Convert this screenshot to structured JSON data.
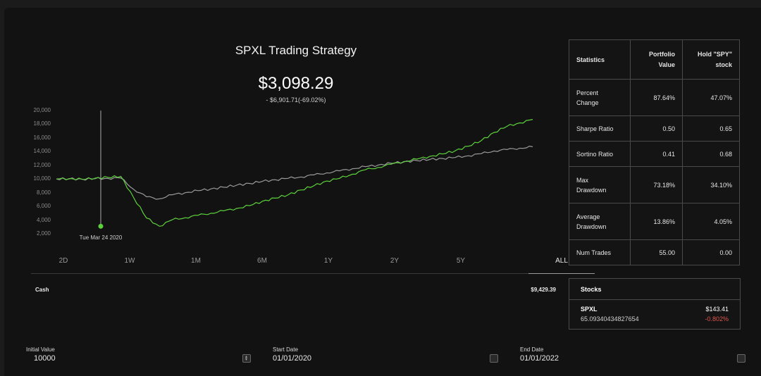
{
  "header": {
    "title": "SPXL Trading Strategy",
    "value": "$3,098.29",
    "change": "- $6,901.71(-69.02%)"
  },
  "chart_data": {
    "type": "line",
    "y_ticks": [
      "20,000",
      "18,000",
      "16,000",
      "14,000",
      "12,000",
      "10,000",
      "8,000",
      "6,000",
      "4,000",
      "2,000"
    ],
    "ylim": [
      2000,
      20000
    ],
    "x_range": [
      "01/01/2020",
      "01/01/2022"
    ],
    "crosshair_label": "Tue Mar 24 2020",
    "crosshair_value": 3098.29,
    "series": [
      {
        "color": "#5dd13c",
        "values": [
          10000,
          10060,
          9950,
          10120,
          10250,
          10380,
          7300,
          4300,
          3098,
          4050,
          4350,
          4700,
          5000,
          5350,
          5700,
          6100,
          6750,
          7200,
          7700,
          8400,
          9000,
          9700,
          10100,
          10700,
          11350,
          11700,
          12150,
          12550,
          12900,
          13300,
          13650,
          14150,
          14800,
          15600,
          16800,
          17700,
          18200,
          18700
        ]
      },
      {
        "color": "#9a9a9a",
        "values": [
          10000,
          10020,
          9980,
          10040,
          10100,
          10150,
          8500,
          7400,
          7100,
          7700,
          8000,
          8300,
          8550,
          8800,
          9100,
          9350,
          9650,
          9900,
          10100,
          10300,
          10600,
          10900,
          11200,
          11500,
          11800,
          12050,
          12300,
          12500,
          12700,
          12850,
          13000,
          13150,
          13400,
          13700,
          14100,
          14300,
          14500,
          14700
        ]
      }
    ]
  },
  "ranges": [
    "2D",
    "1W",
    "1M",
    "6M",
    "1Y",
    "2Y",
    "5Y",
    "ALL"
  ],
  "active_range": "ALL",
  "cash": {
    "label": "Cash",
    "value": "$9,429.39"
  },
  "stats": {
    "header": [
      "Statistics",
      "Portfolio Value",
      "Hold \"SPY\" stock"
    ],
    "rows": [
      [
        "Percent Change",
        "87.64%",
        "47.07%"
      ],
      [
        "Sharpe Ratio",
        "0.50",
        "0.65"
      ],
      [
        "Sortino Ratio",
        "0.41",
        "0.68"
      ],
      [
        "Max Drawdown",
        "73.18%",
        "34.10%"
      ],
      [
        "Average Drawdown",
        "13.86%",
        "4.05%"
      ],
      [
        "Num Trades",
        "55.00",
        "0.00"
      ]
    ]
  },
  "stocks": {
    "title": "Stocks",
    "ticker": "SPXL",
    "shares": "65.09340434827654",
    "price": "$143.41",
    "change": "-0.802%",
    "change_color": "#e0574f"
  },
  "inputs": {
    "initial_value_label": "Initial Value",
    "initial_value": "10000",
    "start_date_label": "Start Date",
    "start_date": "01/01/2020",
    "end_date_label": "End Date",
    "end_date": "01/01/2022"
  }
}
